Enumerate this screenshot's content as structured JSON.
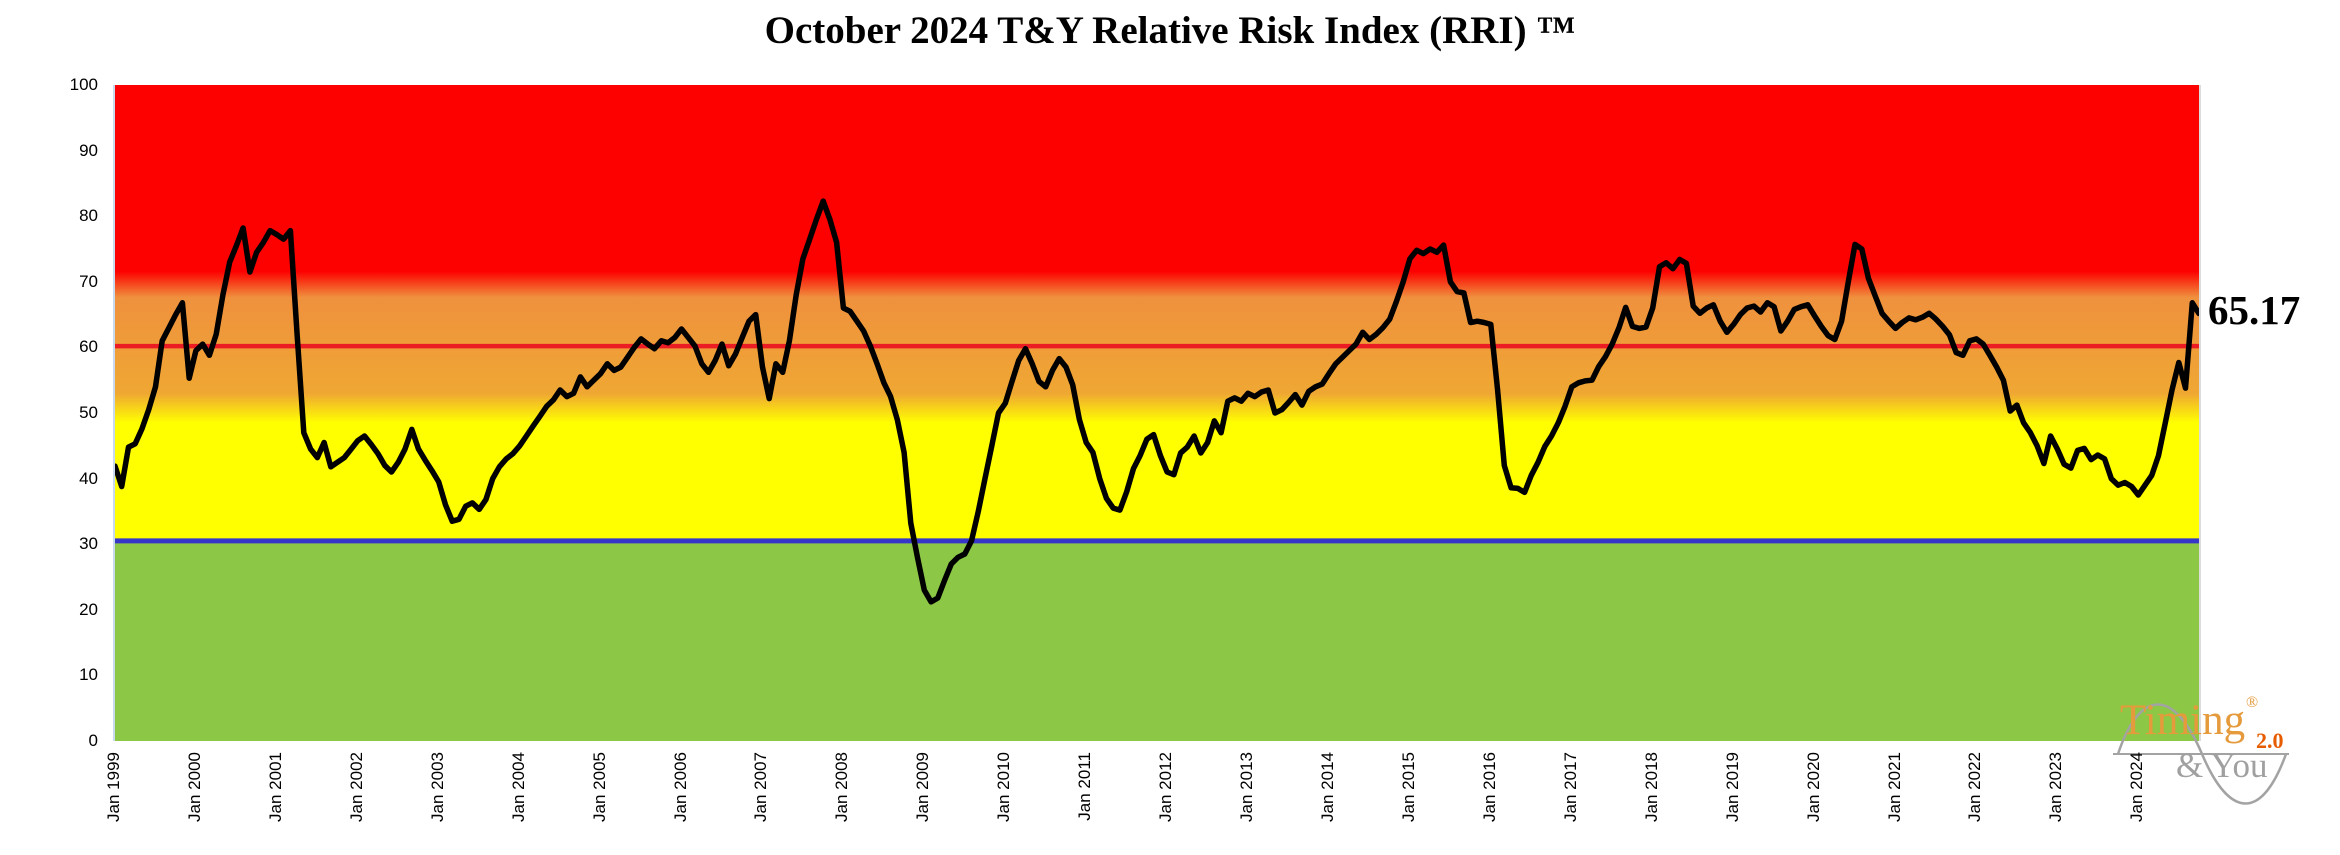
{
  "title": "October 2024 T&Y Relative Risk Index (RRI) ™",
  "value_label": "65.17",
  "logo": {
    "word1": "Timing",
    "reg": "®",
    "version": "2.0",
    "word2": "& You"
  },
  "chart_data": {
    "type": "line",
    "title": "October 2024 T&Y Relative Risk Index (RRI) ™",
    "frequency": "monthly",
    "x_start": "Jan 1999",
    "x_end": "Oct 2024",
    "ylim": [
      0,
      100
    ],
    "y_ticks": [
      0,
      10,
      20,
      30,
      40,
      50,
      60,
      70,
      80,
      90,
      100
    ],
    "x_tick_labels": [
      "Jan 1999",
      "Jan 2000",
      "Jan 2001",
      "Jan 2002",
      "Jan 2003",
      "Jan 2004",
      "Jan 2005",
      "Jan 2006",
      "Jan 2007",
      "Jan 2008",
      "Jan 2009",
      "Jan 2010",
      "Jan 2011",
      "Jan 2012",
      "Jan 2013",
      "Jan 2014",
      "Jan 2015",
      "Jan 2016",
      "Jan 2017",
      "Jan 2018",
      "Jan 2019",
      "Jan 2020",
      "Jan 2021",
      "Jan 2022",
      "Jan 2023",
      "Jan 2024"
    ],
    "grid": false,
    "legend": "none",
    "series": [
      {
        "name": "RRI",
        "color": "#000000",
        "last_value_label": "65.17",
        "values": [
          41.9,
          38.8,
          44.8,
          45.3,
          47.6,
          50.5,
          54.0,
          61.0,
          63.0,
          65.0,
          66.8,
          55.3,
          59.5,
          60.5,
          58.8,
          62.0,
          68.0,
          73.0,
          75.5,
          78.2,
          71.5,
          74.5,
          76.0,
          77.8,
          77.2,
          76.5,
          77.8,
          62.0,
          47.0,
          44.5,
          43.2,
          45.5,
          41.8,
          42.5,
          43.2,
          44.5,
          45.8,
          46.5,
          45.2,
          43.8,
          42.0,
          41.0,
          42.5,
          44.5,
          47.5,
          44.5,
          42.8,
          41.2,
          39.5,
          36.0,
          33.5,
          33.8,
          35.8,
          36.3,
          35.3,
          36.8,
          40.0,
          41.8,
          43.0,
          43.8,
          45.0,
          46.5,
          48.0,
          49.5,
          51.0,
          52.0,
          53.5,
          52.5,
          53.0,
          55.5,
          54.0,
          55.0,
          56.0,
          57.5,
          56.5,
          57.0,
          58.5,
          60.0,
          61.3,
          60.5,
          59.8,
          61.0,
          60.7,
          61.5,
          62.8,
          61.5,
          60.2,
          57.5,
          56.2,
          58.0,
          60.5,
          57.2,
          59.0,
          61.5,
          64.0,
          65.0,
          57.0,
          52.2,
          57.5,
          56.2,
          61.0,
          68.0,
          73.5,
          76.5,
          79.5,
          82.3,
          79.5,
          76.0,
          66.0,
          65.5,
          64.0,
          62.5,
          60.2,
          57.5,
          54.6,
          52.5,
          49.0,
          44.0,
          33.2,
          27.9,
          23.0,
          21.2,
          21.8,
          24.5,
          27.0,
          28.0,
          28.5,
          30.5,
          35.0,
          40.0,
          45.0,
          50.0,
          51.5,
          54.8,
          58.0,
          59.8,
          57.5,
          54.8,
          54.0,
          56.5,
          58.3,
          57.0,
          54.3,
          49.0,
          45.5,
          44.0,
          40.0,
          37.0,
          35.5,
          35.2,
          38.0,
          41.5,
          43.5,
          46.0,
          46.7,
          43.5,
          41.0,
          40.6,
          43.9,
          44.8,
          46.5,
          43.9,
          45.5,
          48.8,
          47.0,
          51.8,
          52.3,
          51.8,
          53.0,
          52.5,
          53.2,
          53.5,
          50.0,
          50.5,
          51.6,
          52.8,
          51.2,
          53.3,
          54.0,
          54.4,
          56.0,
          57.5,
          58.5,
          59.5,
          60.5,
          62.3,
          61.2,
          62.0,
          63.0,
          64.3,
          67.0,
          70.0,
          73.5,
          74.8,
          74.3,
          75.0,
          74.5,
          75.6,
          70.0,
          68.5,
          68.3,
          63.8,
          64.0,
          63.8,
          63.5,
          53.5,
          42.0,
          38.6,
          38.5,
          37.9,
          40.5,
          42.5,
          44.9,
          46.5,
          48.5,
          51.0,
          54.0,
          54.6,
          54.9,
          55.0,
          57.1,
          58.6,
          60.5,
          63.0,
          66.1,
          63.2,
          62.9,
          63.1,
          66.0,
          72.3,
          72.9,
          72.0,
          73.4,
          72.8,
          66.3,
          65.2,
          66.0,
          66.5,
          64.0,
          62.3,
          63.5,
          65.0,
          66.0,
          66.3,
          65.4,
          66.8,
          66.2,
          62.5,
          64.0,
          65.8,
          66.2,
          66.5,
          64.8,
          63.2,
          61.8,
          61.2,
          64.0,
          70.0,
          75.7,
          75.0,
          70.5,
          67.8,
          65.2,
          64.0,
          62.9,
          63.8,
          64.5,
          64.2,
          64.6,
          65.2,
          64.3,
          63.2,
          61.9,
          59.2,
          58.8,
          61.0,
          61.3,
          60.5,
          58.8,
          57.0,
          55.0,
          50.3,
          51.2,
          48.5,
          47.0,
          45.0,
          42.3,
          46.5,
          44.5,
          42.2,
          41.6,
          44.3,
          44.6,
          42.9,
          43.6,
          43.0,
          40.0,
          39.0,
          39.4,
          38.8,
          37.5,
          39.0,
          40.5,
          43.5,
          48.5,
          53.5,
          57.7,
          53.8,
          66.8,
          65.17
        ]
      }
    ],
    "reference_lines": [
      {
        "name": "upper-threshold",
        "value": 60.2,
        "color": "#ec1c24"
      },
      {
        "name": "lower-threshold",
        "value": 30.5,
        "color": "#3636c8"
      }
    ],
    "background_stops": [
      {
        "value": 100.0,
        "color": "#fd0000"
      },
      {
        "value": 71.6,
        "color": "#fd0000"
      },
      {
        "value": 67.6,
        "color": "#ef913e"
      },
      {
        "value": 53.0,
        "color": "#efa733"
      },
      {
        "value": 48.5,
        "color": "#ffff00"
      },
      {
        "value": 30.6,
        "color": "#ffff00"
      },
      {
        "value": 30.59,
        "color": "#8cc846"
      },
      {
        "value": 0.0,
        "color": "#8cc846"
      }
    ]
  }
}
